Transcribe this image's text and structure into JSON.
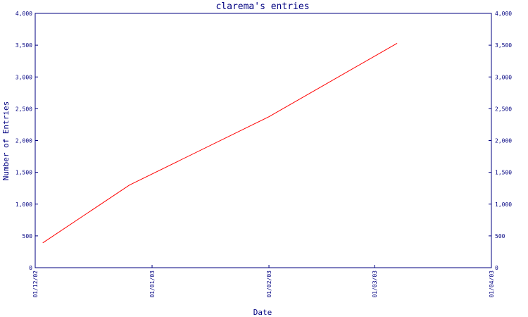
{
  "chart_data": {
    "type": "line",
    "title": "clarema's entries",
    "xlabel": "Date",
    "ylabel": "Number of Entries",
    "x_ticks": [
      "01/12/02",
      "01/01/03",
      "01/02/03",
      "01/03/03",
      "01/04/03"
    ],
    "y_ticks": [
      "0",
      "500",
      "1,000",
      "1,500",
      "2,000",
      "2,500",
      "3,000",
      "3,500",
      "4,000"
    ],
    "ylim": [
      0,
      4000
    ],
    "xlim": [
      "2002-12-01",
      "2003-04-01"
    ],
    "grid": false,
    "colors": {
      "axis": "#000080",
      "line": "#ff0000",
      "text": "#000080"
    },
    "series": [
      {
        "x": [
          "2002-12-03",
          "2002-12-26",
          "2003-02-01",
          "2003-03-07"
        ],
        "y": [
          390,
          1300,
          2375,
          3530
        ]
      }
    ]
  }
}
